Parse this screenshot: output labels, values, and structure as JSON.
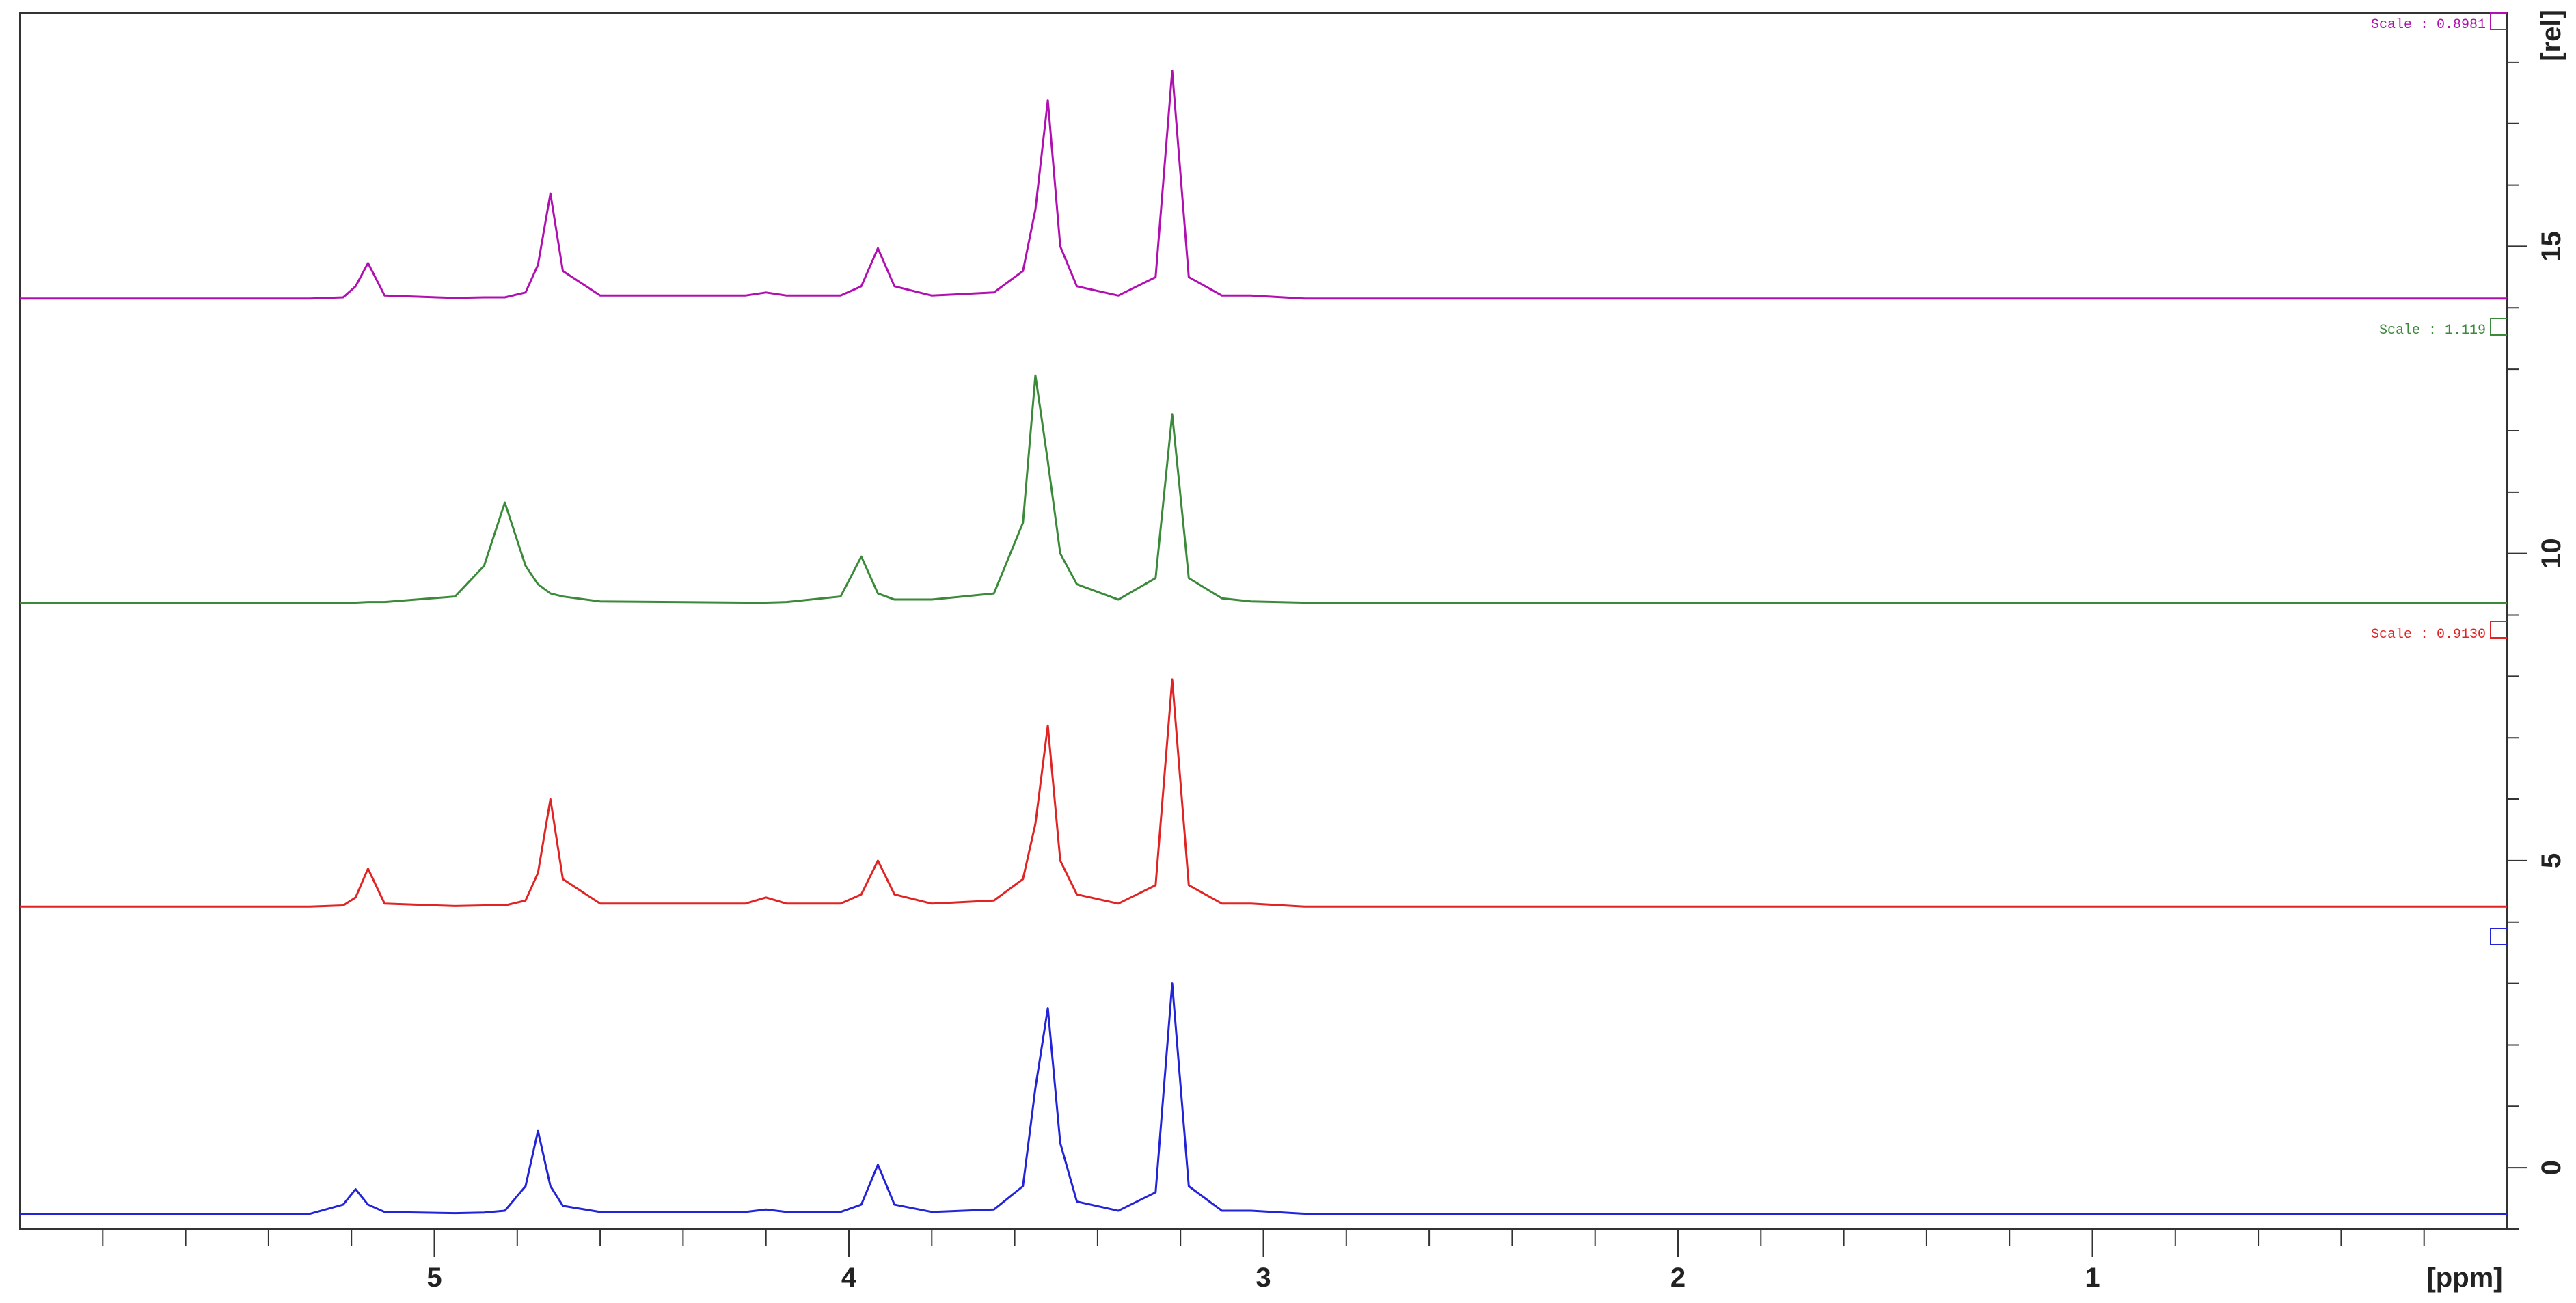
{
  "chart_data": {
    "type": "line",
    "x_label": "[ppm]",
    "y_label": "[rel]",
    "xlim": [
      6,
      0
    ],
    "ylim": [
      -1,
      18.8
    ],
    "xticks": [
      5,
      4,
      3,
      2,
      1
    ],
    "xminorticks": [
      5.8,
      5.6,
      5.4,
      5.2,
      4.8,
      4.6,
      4.4,
      4.2,
      3.8,
      3.6,
      3.4,
      3.2,
      2.8,
      2.6,
      2.4,
      2.2,
      1.8,
      1.6,
      1.4,
      1.2,
      0.8,
      0.6,
      0.4,
      0.2
    ],
    "yticks": [
      0,
      5,
      10,
      15
    ],
    "yminorticks": [
      -1,
      1,
      2,
      3,
      4,
      6,
      7,
      8,
      9,
      11,
      12,
      13,
      14,
      16,
      17,
      18
    ],
    "x": [
      6.0,
      5.3,
      5.22,
      5.19,
      5.16,
      5.12,
      4.95,
      4.88,
      4.83,
      4.78,
      4.75,
      4.72,
      4.69,
      4.6,
      4.25,
      4.2,
      4.15,
      4.02,
      3.97,
      3.93,
      3.89,
      3.8,
      3.65,
      3.58,
      3.55,
      3.52,
      3.49,
      3.45,
      3.35,
      3.26,
      3.22,
      3.18,
      3.1,
      3.03,
      2.9,
      0.0
    ],
    "series": [
      {
        "color": "#2323d8",
        "values": [
          -0.75,
          -0.75,
          -0.6,
          -0.35,
          -0.6,
          -0.72,
          -0.74,
          -0.73,
          -0.7,
          -0.3,
          0.6,
          -0.3,
          -0.62,
          -0.72,
          -0.72,
          -0.68,
          -0.72,
          -0.72,
          -0.6,
          0.05,
          -0.6,
          -0.72,
          -0.68,
          -0.3,
          1.3,
          2.6,
          0.4,
          -0.55,
          -0.7,
          -0.4,
          3.0,
          -0.3,
          -0.7,
          -0.7,
          -0.75,
          -0.75
        ]
      },
      {
        "color": "#e02424",
        "values": [
          4.25,
          4.25,
          4.27,
          4.4,
          4.87,
          4.3,
          4.26,
          4.27,
          4.27,
          4.35,
          4.8,
          6.0,
          4.7,
          4.3,
          4.3,
          4.4,
          4.3,
          4.3,
          4.45,
          5.0,
          4.45,
          4.3,
          4.35,
          4.7,
          5.6,
          7.2,
          5.0,
          4.45,
          4.3,
          4.6,
          7.95,
          4.6,
          4.3,
          4.3,
          4.25,
          4.25
        ]
      },
      {
        "color": "#3a8a3a",
        "values": [
          9.2,
          9.2,
          9.2,
          9.2,
          9.21,
          9.21,
          9.3,
          9.8,
          10.83,
          9.8,
          9.5,
          9.35,
          9.3,
          9.22,
          9.2,
          9.2,
          9.21,
          9.3,
          9.95,
          9.35,
          9.25,
          9.25,
          9.35,
          10.5,
          12.9,
          11.5,
          10.0,
          9.5,
          9.25,
          9.6,
          12.27,
          9.6,
          9.27,
          9.22,
          9.2,
          9.2
        ]
      },
      {
        "color": "#b010b0",
        "values": [
          14.15,
          14.15,
          14.17,
          14.35,
          14.73,
          14.2,
          14.16,
          14.17,
          14.17,
          14.25,
          14.7,
          15.86,
          14.6,
          14.2,
          14.2,
          14.25,
          14.2,
          14.2,
          14.35,
          14.97,
          14.35,
          14.2,
          14.25,
          14.6,
          15.6,
          17.38,
          15.0,
          14.35,
          14.2,
          14.5,
          17.86,
          14.5,
          14.2,
          14.2,
          14.15,
          14.15
        ]
      }
    ],
    "annotations": [
      {
        "text": "Scale : 0.8981",
        "color": "#b010b0"
      },
      {
        "text": "Scale : 1.119",
        "color": "#3a8a3a"
      },
      {
        "text": "Scale : 0.9130",
        "color": "#e02424"
      }
    ]
  }
}
